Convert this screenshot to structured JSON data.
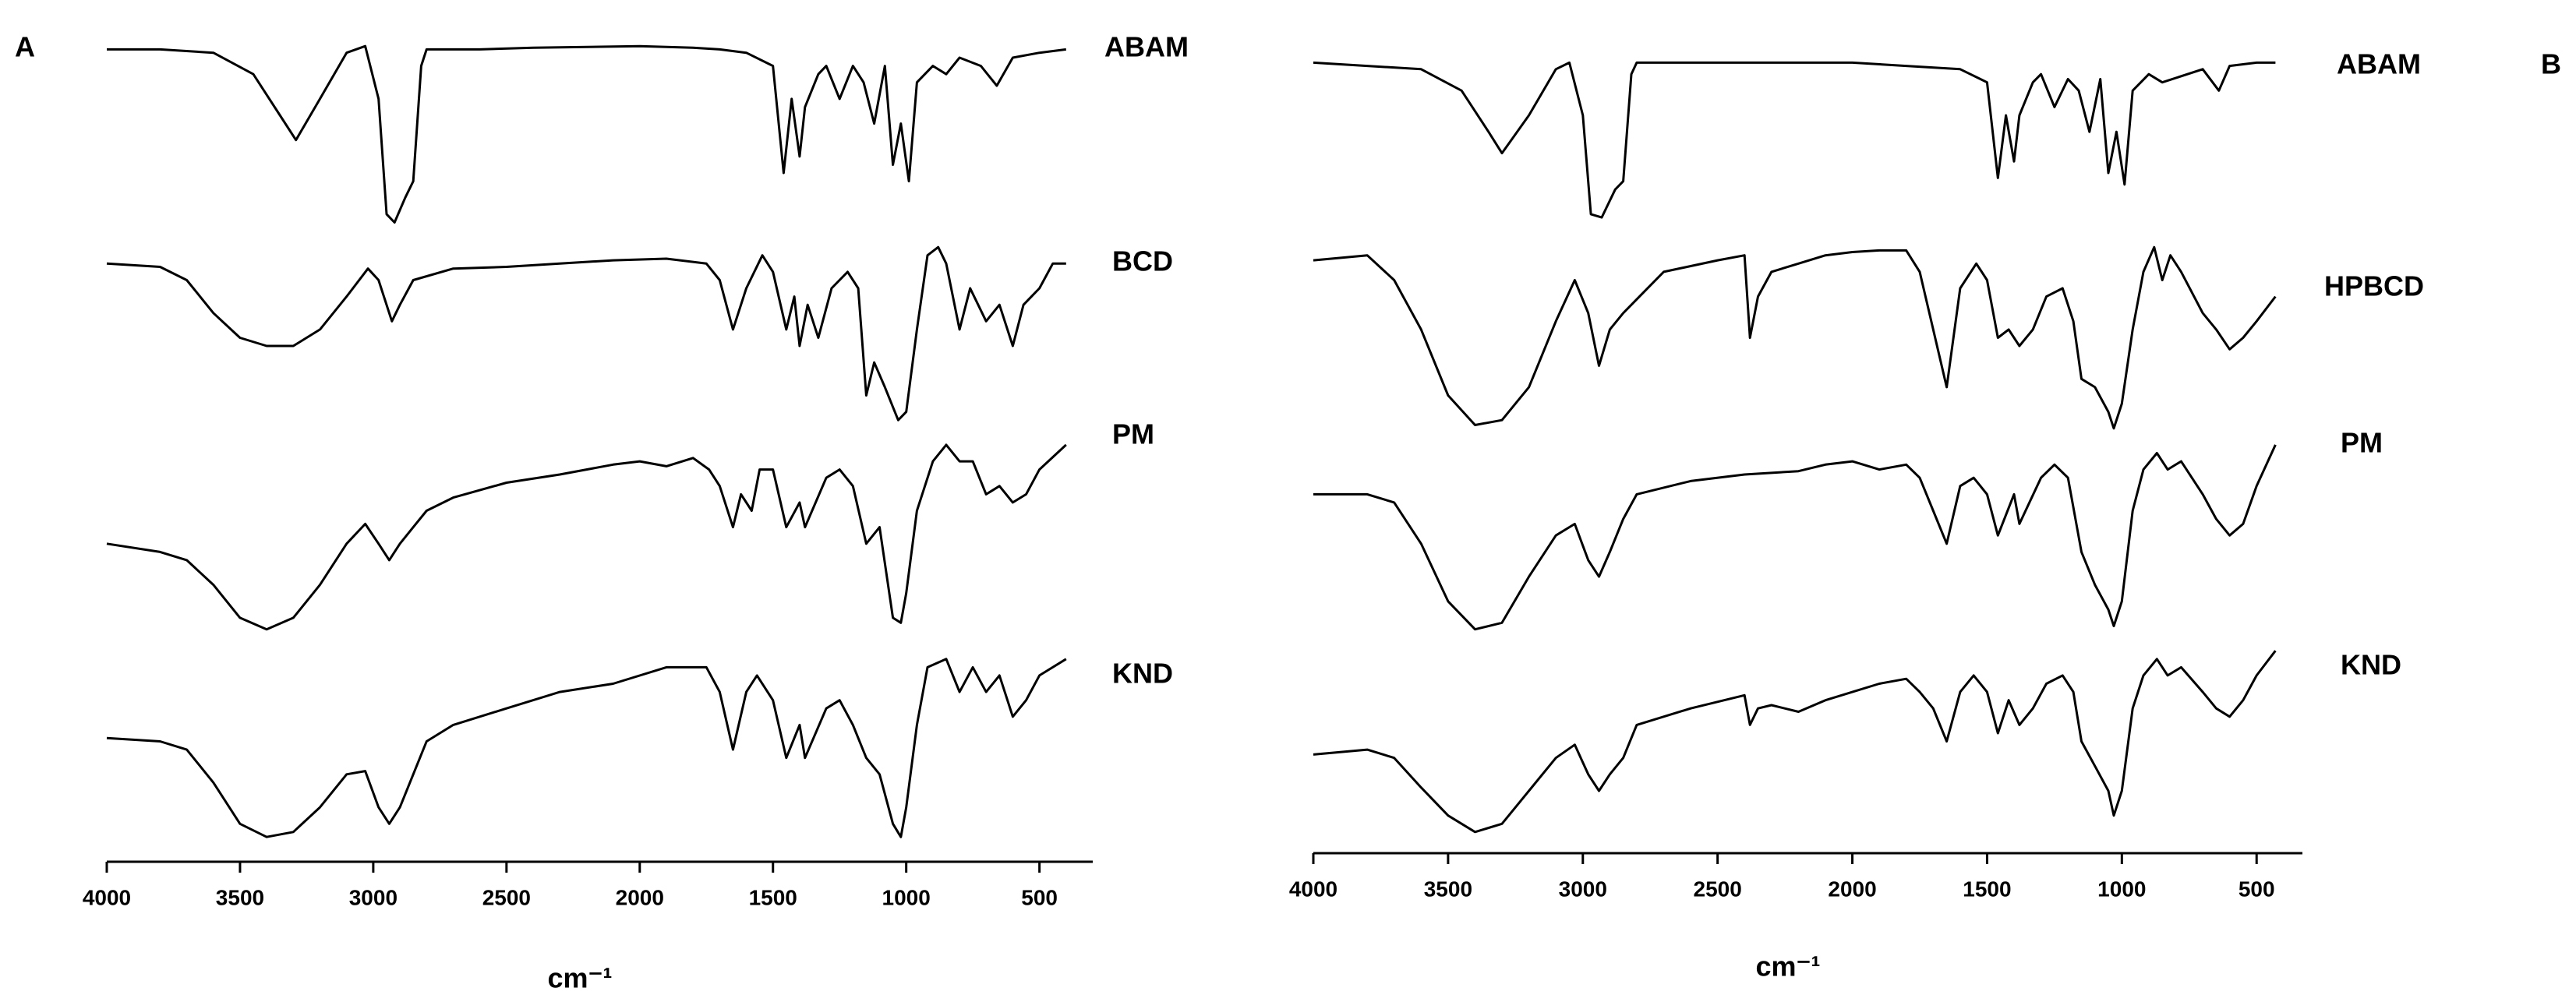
{
  "chart_data": [
    {
      "type": "line",
      "panel_label": "A",
      "xlabel": "cm⁻¹",
      "xlim": [
        4000,
        300
      ],
      "ylim": [
        0,
        100
      ],
      "xticks": [
        4000,
        3500,
        3000,
        2500,
        2000,
        1500,
        1000,
        500
      ],
      "series": [
        {
          "name": "ABAM",
          "color": "#000000",
          "x": [
            4000,
            3800,
            3600,
            3450,
            3350,
            3290,
            3200,
            3100,
            3030,
            2980,
            2950,
            2920,
            2880,
            2850,
            2820,
            2800,
            2600,
            2400,
            2000,
            1800,
            1700,
            1600,
            1500,
            1460,
            1430,
            1400,
            1380,
            1330,
            1300,
            1250,
            1200,
            1160,
            1120,
            1080,
            1050,
            1020,
            990,
            960,
            900,
            850,
            800,
            720,
            660,
            600,
            500,
            400
          ],
          "values": [
            96,
            96,
            95.6,
            93,
            88,
            85,
            90,
            95.6,
            96.4,
            90,
            76,
            75,
            78,
            80,
            94,
            96,
            96,
            96.2,
            96.4,
            96.2,
            96,
            95.6,
            94,
            81,
            90,
            83,
            89,
            93,
            94,
            90,
            94,
            92,
            87,
            94,
            82,
            87,
            80,
            92,
            94,
            93,
            95,
            94,
            91.6,
            95,
            95.6,
            96
          ]
        },
        {
          "name": "BCD",
          "color": "#000000",
          "x": [
            4000,
            3800,
            3700,
            3600,
            3500,
            3400,
            3300,
            3200,
            3100,
            3020,
            2980,
            2930,
            2900,
            2850,
            2700,
            2500,
            2300,
            2100,
            1900,
            1750,
            1700,
            1650,
            1600,
            1540,
            1500,
            1450,
            1420,
            1400,
            1370,
            1330,
            1280,
            1220,
            1180,
            1150,
            1120,
            1080,
            1030,
            1000,
            960,
            920,
            880,
            850,
            800,
            760,
            700,
            650,
            600,
            560,
            500,
            450,
            400
          ],
          "values": [
            70,
            69.6,
            68,
            64,
            61,
            60,
            60,
            62,
            66,
            69.4,
            68,
            63,
            65,
            68,
            69.4,
            69.6,
            70,
            70.4,
            70.6,
            70,
            68,
            62,
            67,
            71,
            69,
            62,
            66,
            60,
            65,
            61,
            67,
            69,
            67,
            54,
            58,
            55,
            51,
            52,
            62,
            71,
            72,
            70,
            62,
            67,
            63,
            65,
            60,
            65,
            67,
            70,
            70
          ]
        },
        {
          "name": "PM",
          "color": "#000000",
          "x": [
            4000,
            3800,
            3700,
            3600,
            3500,
            3400,
            3300,
            3200,
            3100,
            3030,
            2980,
            2940,
            2900,
            2850,
            2800,
            2700,
            2500,
            2300,
            2100,
            2000,
            1900,
            1800,
            1740,
            1700,
            1650,
            1620,
            1580,
            1550,
            1500,
            1450,
            1400,
            1380,
            1300,
            1250,
            1200,
            1150,
            1100,
            1050,
            1020,
            1000,
            960,
            900,
            850,
            800,
            750,
            700,
            650,
            600,
            550,
            500,
            400
          ],
          "values": [
            36,
            35,
            34,
            31,
            27,
            25.6,
            27,
            31,
            36,
            38.4,
            36,
            34,
            36,
            38,
            40,
            41.6,
            43.4,
            44.4,
            45.6,
            46,
            45.4,
            46.4,
            45,
            43,
            38,
            42,
            40,
            45,
            45,
            38,
            41,
            38,
            44,
            45,
            43,
            36,
            38,
            27,
            26.4,
            30,
            40,
            46,
            48,
            46,
            46,
            42,
            43,
            41,
            42,
            45,
            48
          ]
        },
        {
          "name": "KND",
          "color": "#000000",
          "x": [
            4000,
            3800,
            3700,
            3600,
            3500,
            3400,
            3300,
            3200,
            3100,
            3030,
            2980,
            2940,
            2900,
            2850,
            2800,
            2700,
            2500,
            2300,
            2100,
            1900,
            1750,
            1700,
            1650,
            1600,
            1560,
            1500,
            1450,
            1400,
            1380,
            1300,
            1250,
            1200,
            1150,
            1100,
            1050,
            1020,
            1000,
            960,
            920,
            850,
            800,
            750,
            700,
            650,
            600,
            550,
            500,
            400
          ],
          "values": [
            12.4,
            12,
            11,
            7,
            2,
            0.4,
            1,
            4,
            8,
            8.4,
            4,
            2,
            4,
            8,
            12,
            14,
            16,
            18,
            19,
            21,
            21,
            18,
            11,
            18,
            20,
            17,
            10,
            14,
            10,
            16,
            17,
            14,
            10,
            8,
            2,
            0.4,
            4,
            14,
            21,
            22,
            18,
            21,
            18,
            20,
            15,
            17,
            20,
            22
          ]
        }
      ]
    },
    {
      "type": "line",
      "panel_label": "B",
      "xlabel": "cm⁻¹",
      "xlim": [
        4000,
        330
      ],
      "ylim": [
        0,
        100
      ],
      "xticks": [
        4000,
        3500,
        3000,
        2500,
        2000,
        1500,
        1000,
        500
      ],
      "series": [
        {
          "name": "ABAM",
          "color": "#000000",
          "x": [
            4000,
            3800,
            3600,
            3450,
            3350,
            3300,
            3200,
            3100,
            3050,
            3000,
            2970,
            2930,
            2880,
            2850,
            2820,
            2800,
            2400,
            2000,
            1800,
            1600,
            1500,
            1460,
            1430,
            1400,
            1380,
            1330,
            1300,
            1250,
            1200,
            1160,
            1120,
            1080,
            1050,
            1020,
            990,
            960,
            900,
            850,
            700,
            640,
            600,
            500,
            430
          ],
          "values": [
            94.4,
            94,
            93.6,
            91,
            86,
            83.4,
            88,
            93.6,
            94.4,
            88,
            76,
            75.6,
            79,
            80,
            93,
            94.4,
            94.4,
            94.4,
            94,
            93.6,
            92,
            80.4,
            88,
            82.4,
            88,
            92,
            93,
            89,
            92.4,
            91,
            86,
            92.4,
            81,
            86,
            79.6,
            91,
            93,
            92,
            93.6,
            91,
            94,
            94.4,
            94.4
          ]
        },
        {
          "name": "HPBCD",
          "color": "#000000",
          "x": [
            4000,
            3800,
            3700,
            3600,
            3500,
            3400,
            3300,
            3200,
            3100,
            3030,
            2980,
            2940,
            2900,
            2850,
            2700,
            2500,
            2400,
            2380,
            2350,
            2300,
            2200,
            2100,
            2000,
            1900,
            1800,
            1750,
            1700,
            1650,
            1600,
            1540,
            1500,
            1460,
            1420,
            1380,
            1330,
            1280,
            1220,
            1180,
            1150,
            1100,
            1050,
            1030,
            1000,
            960,
            920,
            880,
            850,
            820,
            780,
            700,
            650,
            600,
            550,
            500,
            430
          ],
          "values": [
            70.4,
            71,
            68,
            62,
            54,
            50.4,
            51,
            55,
            63,
            68,
            64,
            57.6,
            62,
            64,
            69,
            70.4,
            71,
            61,
            66,
            69,
            70,
            71,
            71.4,
            71.6,
            71.6,
            69,
            62,
            55,
            67,
            70,
            68,
            61,
            62,
            60,
            62,
            66,
            67,
            63,
            56,
            55,
            52,
            50,
            53,
            62,
            69,
            72,
            68,
            71,
            69,
            64,
            62,
            59.6,
            61,
            63,
            66
          ]
        },
        {
          "name": "PM",
          "color": "#000000",
          "x": [
            4000,
            3800,
            3700,
            3600,
            3500,
            3400,
            3300,
            3200,
            3100,
            3030,
            2980,
            2940,
            2900,
            2850,
            2800,
            2600,
            2400,
            2200,
            2100,
            2000,
            1900,
            1800,
            1750,
            1700,
            1650,
            1600,
            1550,
            1500,
            1460,
            1400,
            1380,
            1300,
            1250,
            1200,
            1150,
            1100,
            1050,
            1030,
            1000,
            960,
            920,
            870,
            830,
            780,
            700,
            650,
            600,
            550,
            500,
            430
          ],
          "values": [
            42,
            42,
            41,
            36,
            29,
            25.6,
            26.4,
            32,
            37,
            38.4,
            34,
            32,
            35,
            39,
            42,
            43.6,
            44.4,
            44.8,
            45.6,
            46,
            45,
            45.6,
            44,
            40,
            36,
            43,
            44,
            42,
            37,
            42,
            38.4,
            44,
            45.6,
            44,
            35,
            31,
            28,
            26,
            29,
            40,
            45,
            47,
            45,
            46,
            42,
            39,
            37,
            38.4,
            43,
            48
          ]
        },
        {
          "name": "KND",
          "color": "#000000",
          "x": [
            4000,
            3800,
            3700,
            3600,
            3500,
            3400,
            3300,
            3200,
            3100,
            3030,
            2980,
            2940,
            2900,
            2850,
            2800,
            2600,
            2400,
            2380,
            2350,
            2300,
            2200,
            2100,
            2000,
            1900,
            1800,
            1750,
            1700,
            1650,
            1600,
            1550,
            1500,
            1460,
            1420,
            1380,
            1330,
            1280,
            1220,
            1180,
            1150,
            1100,
            1050,
            1030,
            1000,
            960,
            920,
            870,
            830,
            780,
            700,
            650,
            600,
            550,
            500,
            430
          ],
          "values": [
            10.4,
            11,
            10,
            6.4,
            3,
            1,
            2,
            6,
            10,
            11.6,
            8,
            6,
            8,
            10,
            14,
            16,
            17.6,
            14,
            16,
            16.4,
            15.6,
            17,
            18,
            19,
            19.6,
            18,
            16,
            12,
            18,
            20,
            18,
            13,
            17,
            14,
            16,
            19,
            20,
            18,
            12,
            9,
            6,
            3,
            6,
            16,
            20,
            22,
            20,
            21,
            18,
            16,
            15,
            17,
            20,
            23
          ]
        }
      ]
    }
  ]
}
